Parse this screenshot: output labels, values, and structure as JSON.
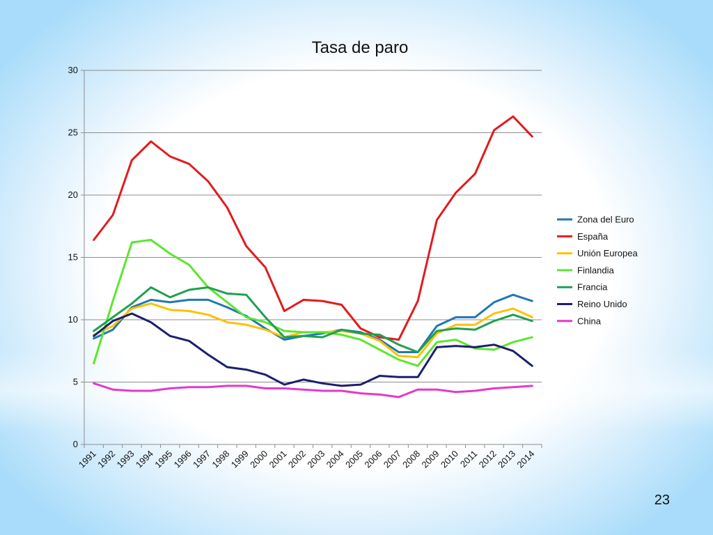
{
  "slide": {
    "page_number": "23"
  },
  "chart_data": {
    "type": "line",
    "title": "Tasa de paro",
    "xlabel": "",
    "ylabel": "",
    "ylim": [
      0,
      30
    ],
    "yticks": [
      0,
      5,
      10,
      15,
      20,
      25,
      30
    ],
    "grid": true,
    "legend_position": "right",
    "categories": [
      "1991",
      "1992",
      "1993",
      "1994",
      "1995",
      "1996",
      "1997",
      "1998",
      "1999",
      "2000",
      "2001",
      "2002",
      "2003",
      "2004",
      "2005",
      "2006",
      "2007",
      "2008",
      "2009",
      "2010",
      "2011",
      "2012",
      "2013",
      "2014"
    ],
    "series": [
      {
        "name": "Zona del Euro",
        "color": "#1f77b4",
        "values": [
          8.5,
          9.2,
          11.0,
          11.6,
          11.4,
          11.6,
          11.6,
          11.0,
          10.3,
          9.3,
          8.4,
          8.7,
          8.9,
          9.2,
          9.0,
          8.4,
          7.4,
          7.4,
          9.5,
          10.2,
          10.2,
          11.4,
          12.0,
          11.5
        ]
      },
      {
        "name": "España",
        "color": "#e31a1c",
        "values": [
          16.4,
          18.4,
          22.8,
          24.3,
          23.1,
          22.5,
          21.1,
          19.0,
          15.9,
          14.2,
          10.7,
          11.6,
          11.5,
          11.2,
          9.3,
          8.6,
          8.4,
          11.5,
          18.0,
          20.2,
          21.7,
          25.2,
          26.3,
          24.7
        ]
      },
      {
        "name": "Unión Europea",
        "color": "#ffc000",
        "values": [
          8.8,
          9.5,
          10.9,
          11.3,
          10.8,
          10.7,
          10.4,
          9.8,
          9.6,
          9.2,
          8.6,
          9.0,
          9.0,
          9.1,
          8.9,
          8.3,
          7.1,
          7.0,
          8.9,
          9.6,
          9.6,
          10.5,
          10.9,
          10.2
        ]
      },
      {
        "name": "Finlandia",
        "color": "#5ce62e",
        "values": [
          6.5,
          11.5,
          16.2,
          16.4,
          15.3,
          14.4,
          12.6,
          11.4,
          10.2,
          9.8,
          9.1,
          9.0,
          9.0,
          8.8,
          8.4,
          7.6,
          6.8,
          6.3,
          8.2,
          8.4,
          7.7,
          7.6,
          8.2,
          8.6
        ]
      },
      {
        "name": "Francia",
        "color": "#1fa050",
        "values": [
          9.1,
          10.2,
          11.3,
          12.6,
          11.8,
          12.4,
          12.6,
          12.1,
          12.0,
          10.2,
          8.6,
          8.7,
          8.6,
          9.2,
          8.9,
          8.8,
          8.0,
          7.4,
          9.1,
          9.3,
          9.2,
          9.9,
          10.4,
          9.9
        ]
      },
      {
        "name": "Reino Unido",
        "color": "#1c1f6e",
        "values": [
          8.7,
          9.9,
          10.5,
          9.8,
          8.7,
          8.3,
          7.2,
          6.2,
          6.0,
          5.6,
          4.8,
          5.2,
          4.9,
          4.7,
          4.8,
          5.5,
          5.4,
          5.4,
          7.8,
          7.9,
          7.8,
          8.0,
          7.5,
          6.3
        ]
      },
      {
        "name": "China",
        "color": "#e539c9",
        "values": [
          4.9,
          4.4,
          4.3,
          4.3,
          4.5,
          4.6,
          4.6,
          4.7,
          4.7,
          4.5,
          4.5,
          4.4,
          4.3,
          4.3,
          4.1,
          4.0,
          3.8,
          4.4,
          4.4,
          4.2,
          4.3,
          4.5,
          4.6,
          4.7
        ]
      }
    ]
  }
}
